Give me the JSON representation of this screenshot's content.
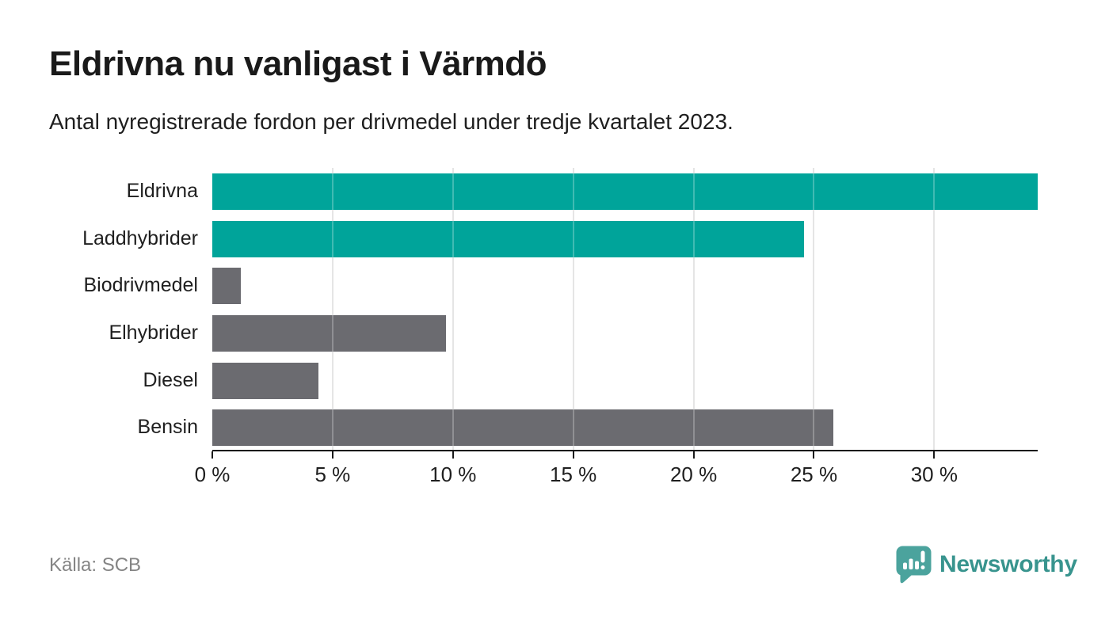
{
  "header": {
    "title": "Eldrivna nu vanligast i Värmdö",
    "subtitle": "Antal nyregistrerade fordon per drivmedel under tredje kvartalet 2023."
  },
  "chart_data": {
    "type": "bar",
    "orientation": "horizontal",
    "title": "Eldrivna nu vanligast i Värmdö",
    "xlabel": "",
    "ylabel": "",
    "unit": "%",
    "categories": [
      "Eldrivna",
      "Laddhybrider",
      "Biodrivmedel",
      "Elhybrider",
      "Diesel",
      "Bensin"
    ],
    "values": [
      34.3,
      24.6,
      1.2,
      9.7,
      4.4,
      25.8
    ],
    "bar_colors": [
      "#00a49a",
      "#00a49a",
      "#6b6b70",
      "#6b6b70",
      "#6b6b70",
      "#6b6b70"
    ],
    "xlim": [
      0,
      34.3
    ],
    "x_ticks": [
      0,
      5,
      10,
      15,
      20,
      25,
      30
    ],
    "x_tick_labels": [
      "0 %",
      "5 %",
      "10 %",
      "15 %",
      "20 %",
      "25 %",
      "30 %"
    ],
    "grid": true,
    "legend": false
  },
  "palette": {
    "highlight": "#00a49a",
    "neutral": "#6b6b70",
    "gridline": "#dcdcdc",
    "axis": "#1a1a1a",
    "text": "#1f1f1f",
    "muted_text": "#848484",
    "brand_text_teal": "#38948e",
    "logo_teal": "#4ba39d",
    "background": "#ffffff"
  },
  "footer": {
    "source": "Källa: SCB",
    "brand": "Newsworthy"
  }
}
